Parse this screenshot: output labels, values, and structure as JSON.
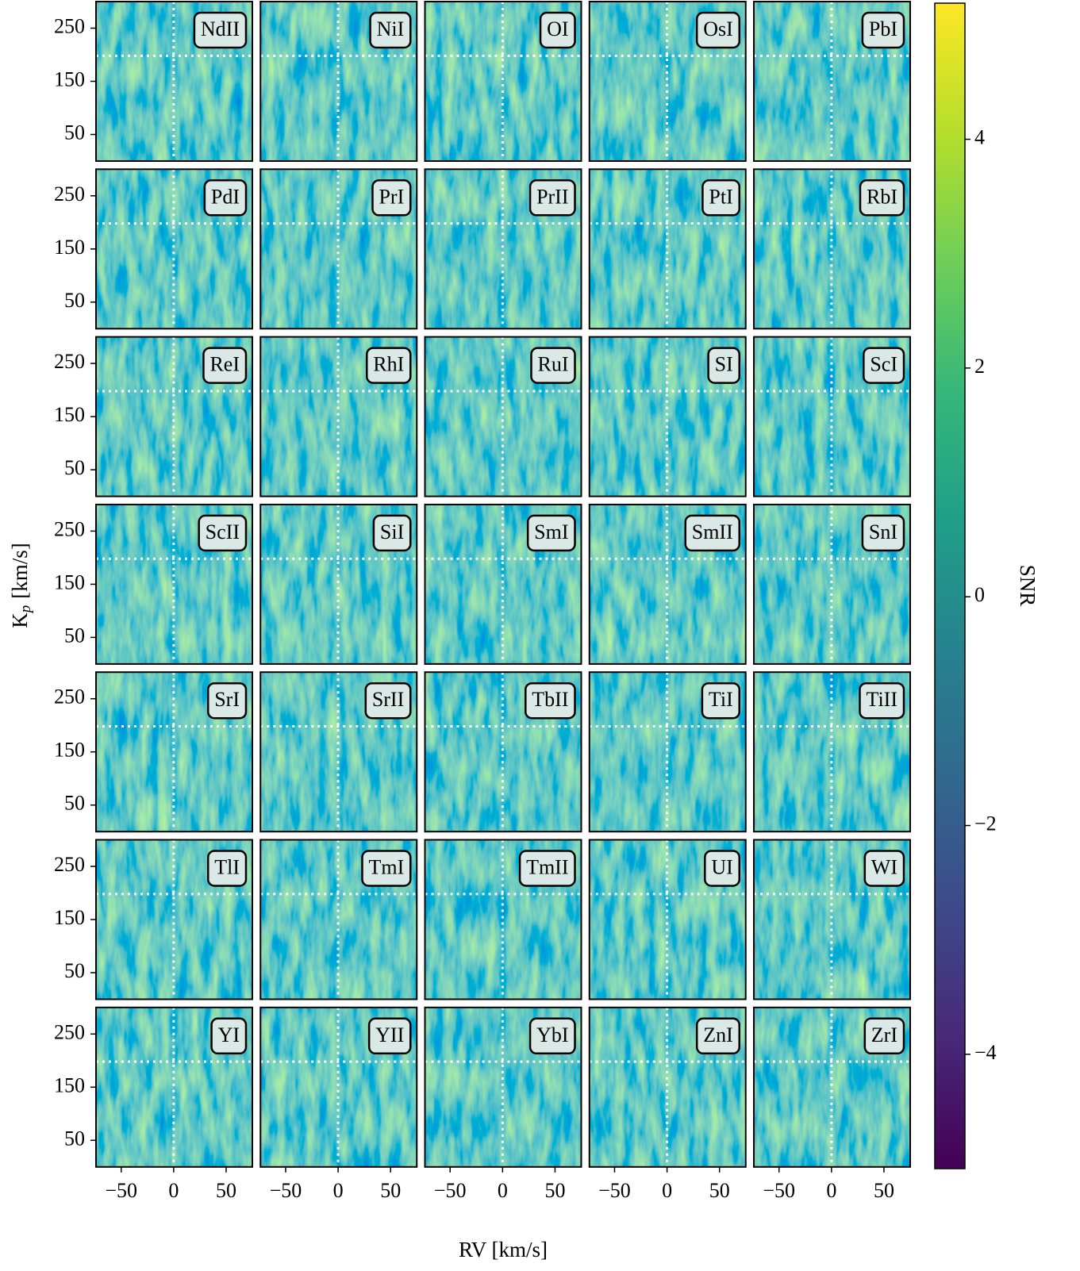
{
  "chart_data": {
    "type": "heatmap-grid",
    "colormap": "viridis",
    "panels": [
      "NdII",
      "NiI",
      "OI",
      "OsI",
      "PbI",
      "PdI",
      "PrI",
      "PrII",
      "PtI",
      "RbI",
      "ReI",
      "RhI",
      "RuI",
      "SI",
      "ScI",
      "ScII",
      "SiI",
      "SmI",
      "SmII",
      "SnI",
      "SrI",
      "SrII",
      "TbII",
      "TiI",
      "TiII",
      "TlI",
      "TmI",
      "TmII",
      "UI",
      "WI",
      "YI",
      "YII",
      "YbI",
      "ZnI",
      "ZrI"
    ],
    "columns": 5,
    "xlabel": "RV [km/s]",
    "ylabel": [
      "K",
      "p",
      "[km/s]"
    ],
    "xlim": [
      -74,
      75
    ],
    "xticks": [
      {
        "value": -50,
        "label": "−50"
      },
      0,
      50
    ],
    "ylim": [
      0,
      300
    ],
    "yticks": [
      50,
      150,
      250
    ],
    "markers": {
      "rv": 0,
      "kp": 198
    },
    "colorbar": {
      "label": "SNR",
      "clim": [
        -5.0,
        5.19
      ],
      "ticks": [
        {
          "value": -4,
          "label": "−4"
        },
        {
          "value": -2,
          "label": "−2"
        },
        0,
        2,
        4
      ]
    }
  }
}
